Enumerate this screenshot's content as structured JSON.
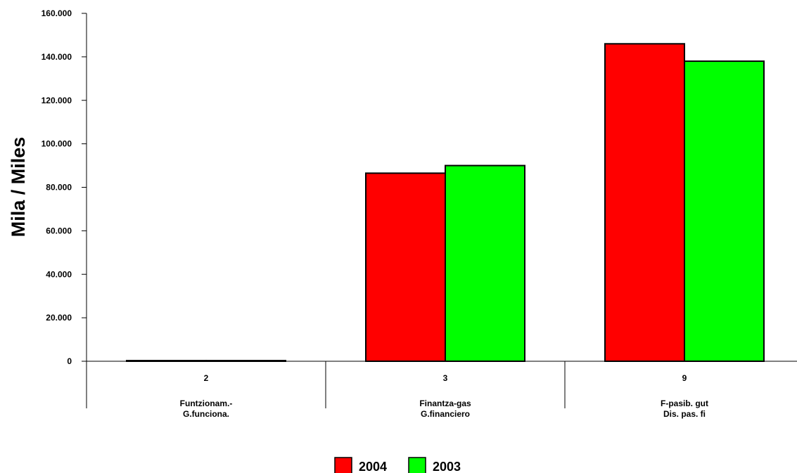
{
  "chart_data": {
    "type": "bar",
    "ylabel": "Mila / Miles",
    "ylim": [
      0,
      160000
    ],
    "yticks": [
      0,
      20000,
      40000,
      60000,
      80000,
      100000,
      120000,
      140000,
      160000
    ],
    "ytick_labels": [
      "0",
      "20.000",
      "40.000",
      "60.000",
      "80.000",
      "100.000",
      "120.000",
      "140.000",
      "160.000"
    ],
    "categories": [
      {
        "code": "2",
        "line1": "Funtzionam.-",
        "line2": "G.funciona."
      },
      {
        "code": "3",
        "line1": "Finantza-gas",
        "line2": "G.financiero"
      },
      {
        "code": "9",
        "line1": "F-pasib. gut",
        "line2": "Dis. pas. fi"
      }
    ],
    "series": [
      {
        "name": "2004",
        "color": "#ff0000",
        "values": [
          300,
          86500,
          146000
        ]
      },
      {
        "name": "2003",
        "color": "#00ff00",
        "values": [
          300,
          90000,
          138000
        ]
      }
    ],
    "legend_position": "bottom-center",
    "grid": false
  }
}
